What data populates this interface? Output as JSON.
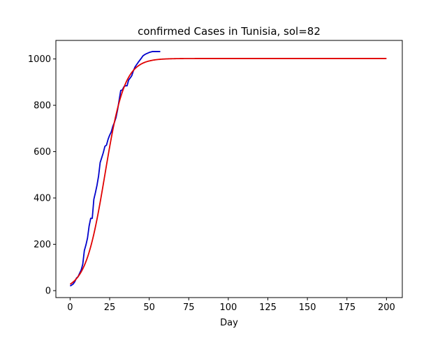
{
  "chart_data": {
    "type": "line",
    "title": "confirmed Cases in Tunisia, sol=82",
    "xlabel": "Day",
    "ylabel": "",
    "xlim": [
      -9,
      210
    ],
    "ylim": [
      -30,
      1080
    ],
    "xticks": [
      0,
      25,
      50,
      75,
      100,
      125,
      150,
      175,
      200
    ],
    "yticks": [
      0,
      200,
      400,
      600,
      800,
      1000
    ],
    "grid": false,
    "legend": "none",
    "series": [
      {
        "color": "#0000cc",
        "x": [
          0,
          1,
          2,
          3,
          4,
          5,
          6,
          7,
          8,
          9,
          10,
          11,
          12,
          13,
          14,
          15,
          16,
          17,
          18,
          19,
          20,
          21,
          22,
          23,
          24,
          25,
          26,
          27,
          28,
          29,
          30,
          31,
          32,
          33,
          34,
          35,
          36,
          37,
          38,
          39,
          40,
          41,
          42,
          43,
          44,
          45,
          46,
          47,
          48,
          49,
          50,
          51,
          52,
          53,
          54,
          55,
          56,
          57
        ],
        "y": [
          20,
          24,
          29,
          39,
          54,
          60,
          75,
          89,
          114,
          173,
          197,
          227,
          278,
          312,
          312,
          394,
          423,
          455,
          495,
          553,
          574,
          596,
          623,
          628,
          653,
          671,
          685,
          709,
          726,
          747,
          780,
          822,
          864,
          866,
          880,
          884,
          884,
          909,
          918,
          928,
          949,
          965,
          975,
          985,
          994,
          1003,
          1013,
          1018,
          1022,
          1025,
          1028,
          1030,
          1032,
          1032,
          1032,
          1032,
          1032,
          1032
        ]
      },
      {
        "color": "#e00000",
        "sigmoid": {
          "L": 1002,
          "k": 0.162,
          "x0": 22
        },
        "x_range": [
          0,
          200
        ]
      }
    ]
  }
}
